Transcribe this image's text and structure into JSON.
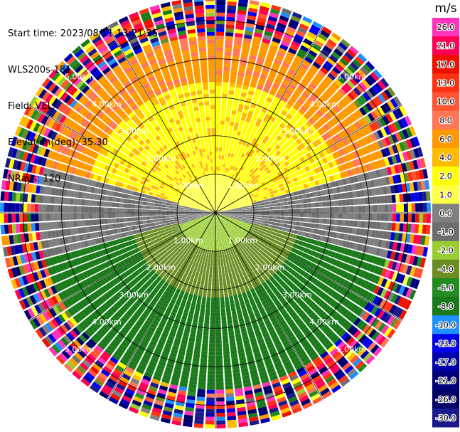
{
  "header": {
    "start_time": "Start time: 2023/08/11 13:21:25",
    "instrument": "WLS200s-181",
    "field": "Field: VEL",
    "elevation": "Elevation(deg): 35.30",
    "nrays": "NRays: 120"
  },
  "chart_data": {
    "type": "heatmap",
    "projection": "polar-ppi",
    "n_rays": 120,
    "range_unit": "km",
    "range_rings": [
      1.0,
      2.0,
      3.0,
      4.0,
      5.0
    ],
    "ring_labels": [
      "1.00km",
      "2.00km",
      "3.00km",
      "4.00km",
      "5.00km"
    ],
    "max_range_km": 5.6,
    "colorbar": {
      "unit": "m/s",
      "vmin": -30.0,
      "vmax": 30.0,
      "tick_labels": [
        "26.0",
        "21.0",
        "17.0",
        "13.0",
        "10.0",
        "8.0",
        "6.0",
        "4.0",
        "2.0",
        "1.0",
        "0.0",
        "-1.0",
        "-2.0",
        "-4.0",
        "-6.0",
        "-8.0",
        "-10.0",
        "-13.0",
        "-17.0",
        "-21.0",
        "-26.0",
        "-30.0"
      ],
      "colors": [
        "#ff33bb",
        "#ff0055",
        "#ee1100",
        "#ff3311",
        "#ff5533",
        "#ff7755",
        "#ff9900",
        "#ffbb00",
        "#ffff00",
        "#ffff44",
        "#808080",
        "#6e6e6e",
        "#9acd32",
        "#6b8e23",
        "#228b22",
        "#1a7a1a",
        "#1e90ff",
        "#0000ee",
        "#0000aa",
        "#00007a",
        "#000066",
        "#1a1a8c"
      ]
    },
    "velocity_field": {
      "description_zones": [
        {
          "sector": "north",
          "range_km": [
            1.0,
            3.5
          ],
          "value_ms": 3.0
        },
        {
          "sector": "north",
          "range_km": [
            3.5,
            5.6
          ],
          "value_ms": 6.0
        },
        {
          "sector": "south",
          "range_km": [
            1.0,
            5.6
          ],
          "value_ms": -5.0
        },
        {
          "sector": "near",
          "range_km": [
            0.0,
            1.0
          ],
          "value_ms": 0.0
        }
      ],
      "noise_from_km": 4.6
    }
  }
}
